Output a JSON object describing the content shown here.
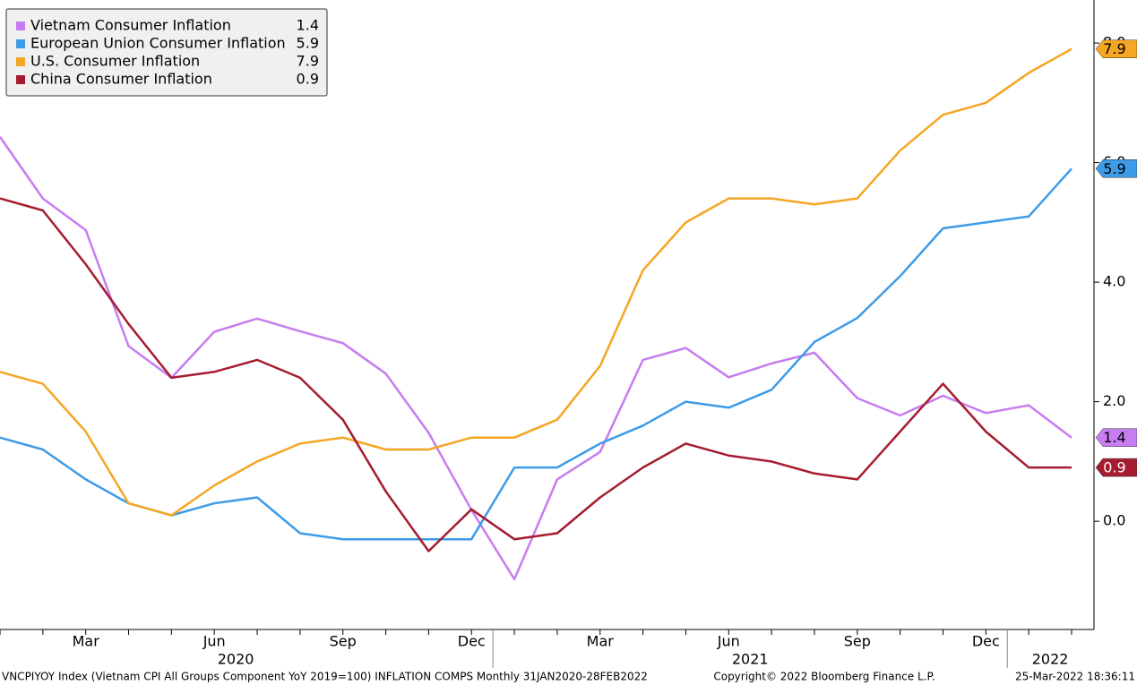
{
  "chart_data": {
    "type": "line",
    "categories": [
      null,
      null,
      "Mar",
      null,
      null,
      "Jun",
      null,
      null,
      "Sep",
      null,
      null,
      "Dec",
      null,
      null,
      "Mar",
      null,
      null,
      "Jun",
      null,
      null,
      "Sep",
      null,
      null,
      "Dec",
      null,
      null
    ],
    "years": [
      "2020",
      "2021",
      "2022"
    ],
    "series": [
      {
        "name": "Vietnam Consumer Inflation",
        "color": "#c77cf0",
        "label_color": "#000000",
        "values": [
          6.43,
          5.4,
          4.87,
          2.93,
          2.4,
          3.17,
          3.39,
          3.18,
          2.98,
          2.47,
          1.48,
          0.19,
          -0.97,
          0.7,
          1.16,
          2.7,
          2.9,
          2.41,
          2.64,
          2.82,
          2.06,
          1.77,
          2.1,
          1.81,
          1.94,
          1.4
        ]
      },
      {
        "name": "European Union Consumer Inflation",
        "color": "#3e9be8",
        "label_color": "#000000",
        "values": [
          1.4,
          1.2,
          0.7,
          0.3,
          0.1,
          0.3,
          0.4,
          -0.2,
          -0.3,
          -0.3,
          -0.3,
          -0.3,
          0.9,
          0.9,
          1.3,
          1.6,
          2.0,
          1.9,
          2.2,
          3.0,
          3.4,
          4.1,
          4.9,
          5.0,
          5.1,
          5.9
        ]
      },
      {
        "name": "U.S. Consumer Inflation",
        "color": "#f5a623",
        "label_color": "#000000",
        "values": [
          2.5,
          2.3,
          1.5,
          0.3,
          0.1,
          0.6,
          1.0,
          1.3,
          1.4,
          1.2,
          1.2,
          1.4,
          1.4,
          1.7,
          2.6,
          4.2,
          5.0,
          5.4,
          5.4,
          5.3,
          5.4,
          6.2,
          6.8,
          7.0,
          7.5,
          7.9
        ]
      },
      {
        "name": "China Consumer Inflation",
        "color": "#a51c30",
        "label_color": "#ffffff",
        "values": [
          5.4,
          5.2,
          4.3,
          3.3,
          2.4,
          2.5,
          2.7,
          2.4,
          1.7,
          0.5,
          -0.5,
          0.2,
          -0.3,
          -0.2,
          0.4,
          0.9,
          1.3,
          1.1,
          1.0,
          0.8,
          0.7,
          1.5,
          2.3,
          1.5,
          0.9,
          0.9
        ]
      }
    ],
    "ylim": [
      -1.81,
      8.72
    ],
    "yticks": [
      {
        "value": 0,
        "label": "0.0"
      },
      {
        "value": 2,
        "label": "2.0"
      },
      {
        "value": 4,
        "label": "4.0"
      },
      {
        "value": 6,
        "label": "6.0"
      },
      {
        "value": 8,
        "label": "8.0"
      }
    ],
    "grid": false,
    "legend": "upper left",
    "footer": {
      "source": "VNCPIYOY Index (Vietnam CPI All Groups Component YoY 2019=100) INFLATION COMPS  Monthly 31JAN2020-28FEB2022",
      "copyright": "Copyright© 2022 Bloomberg Finance L.P.",
      "timestamp": "25-Mar-2022 18:36:11"
    }
  }
}
